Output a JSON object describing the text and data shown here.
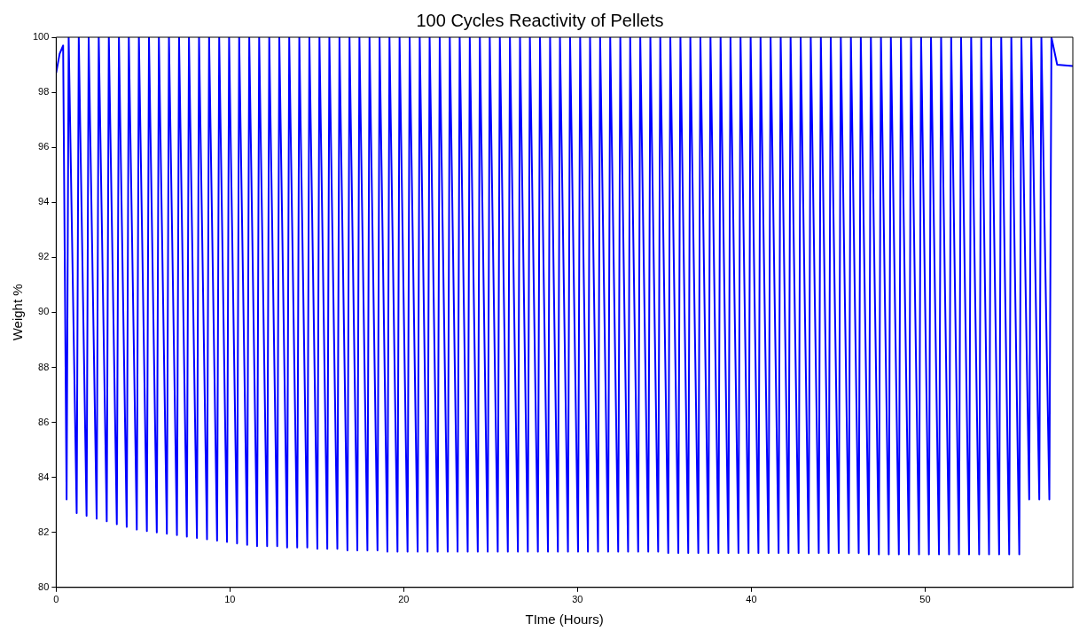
{
  "chart_data": {
    "type": "line",
    "title": "100 Cycles Reactivity of Pellets",
    "xlabel": "TIme (Hours)",
    "ylabel": "Weight %",
    "xlim": [
      0,
      58.5
    ],
    "ylim": [
      80,
      100
    ],
    "xticks": [
      0,
      10,
      20,
      30,
      40,
      50
    ],
    "yticks": [
      80,
      82,
      84,
      86,
      88,
      90,
      92,
      94,
      96,
      98,
      100
    ],
    "grid": false,
    "legend": false,
    "marker": "none",
    "line_style": "solid",
    "series": [
      {
        "color": "#0000ff",
        "x": [
          0,
          0.2,
          0.4,
          0.6,
          0.72,
          1.18,
          1.3,
          1.75,
          1.87,
          2.33,
          2.45,
          2.91,
          3.03,
          3.49,
          3.61,
          4.06,
          4.18,
          4.64,
          4.76,
          5.22,
          5.34,
          5.79,
          5.91,
          6.37,
          6.49,
          6.95,
          7.07,
          7.52,
          7.64,
          8.1,
          8.22,
          8.68,
          8.8,
          9.26,
          9.38,
          9.83,
          9.95,
          10.41,
          10.53,
          10.99,
          11.11,
          11.56,
          11.68,
          12.14,
          12.26,
          12.72,
          12.84,
          13.29,
          13.41,
          13.87,
          13.99,
          14.45,
          14.57,
          15.03,
          15.15,
          15.6,
          15.72,
          16.18,
          16.3,
          16.76,
          16.88,
          17.33,
          17.45,
          17.91,
          18.03,
          18.49,
          18.61,
          19.06,
          19.18,
          19.64,
          19.76,
          20.22,
          20.34,
          20.8,
          20.92,
          21.37,
          21.49,
          21.95,
          22.07,
          22.53,
          22.65,
          23.1,
          23.22,
          23.68,
          23.8,
          24.26,
          24.38,
          24.83,
          24.95,
          25.41,
          25.53,
          25.99,
          26.11,
          26.57,
          26.69,
          27.14,
          27.26,
          27.72,
          27.84,
          28.3,
          28.42,
          28.87,
          28.99,
          29.45,
          29.57,
          30.03,
          30.15,
          30.6,
          30.72,
          31.18,
          31.3,
          31.76,
          31.88,
          32.34,
          32.46,
          32.91,
          33.03,
          33.49,
          33.61,
          34.07,
          34.19,
          34.64,
          34.76,
          35.22,
          35.34,
          35.8,
          35.92,
          36.37,
          36.49,
          36.95,
          37.07,
          37.53,
          37.65,
          38.11,
          38.23,
          38.68,
          38.8,
          39.26,
          39.38,
          39.84,
          39.96,
          40.41,
          40.53,
          40.99,
          41.11,
          41.57,
          41.69,
          42.14,
          42.26,
          42.72,
          42.84,
          43.3,
          43.42,
          43.88,
          44.0,
          44.45,
          44.57,
          45.03,
          45.15,
          45.61,
          45.73,
          46.18,
          46.3,
          46.76,
          46.88,
          47.34,
          47.46,
          47.91,
          48.03,
          48.49,
          48.61,
          49.07,
          49.19,
          49.65,
          49.77,
          50.22,
          50.34,
          50.8,
          50.92,
          51.38,
          51.5,
          51.95,
          52.07,
          52.53,
          52.65,
          53.11,
          53.23,
          53.68,
          53.8,
          54.26,
          54.38,
          54.84,
          54.96,
          55.42,
          55.54,
          55.99,
          56.11,
          56.57,
          56.69,
          57.15,
          57.27,
          57.6,
          58.5
        ],
        "values": [
          98.7,
          99.4,
          99.7,
          83.2,
          100,
          82.7,
          100,
          82.6,
          100,
          82.5,
          100,
          82.4,
          100,
          82.3,
          100,
          82.2,
          100,
          82.1,
          100,
          82.05,
          100,
          82.0,
          100,
          81.95,
          100,
          81.9,
          100,
          81.85,
          100,
          81.8,
          100,
          81.75,
          100,
          81.7,
          100,
          81.65,
          100,
          81.6,
          100,
          81.55,
          100,
          81.5,
          100,
          81.5,
          100,
          81.5,
          100,
          81.45,
          100,
          81.45,
          100,
          81.45,
          100,
          81.4,
          100,
          81.4,
          100,
          81.4,
          100,
          81.35,
          100,
          81.35,
          100,
          81.35,
          100,
          81.35,
          100,
          81.3,
          100,
          81.3,
          100,
          81.3,
          100,
          81.3,
          100,
          81.3,
          100,
          81.3,
          100,
          81.3,
          100,
          81.3,
          100,
          81.3,
          100,
          81.3,
          100,
          81.3,
          100,
          81.3,
          100,
          81.3,
          100,
          81.3,
          100,
          81.3,
          100,
          81.3,
          100,
          81.3,
          100,
          81.3,
          100,
          81.3,
          100,
          81.3,
          100,
          81.3,
          100,
          81.3,
          100,
          81.3,
          100,
          81.3,
          100,
          81.3,
          100,
          81.3,
          100,
          81.3,
          100,
          81.3,
          100,
          81.25,
          100,
          81.25,
          100,
          81.25,
          100,
          81.25,
          100,
          81.25,
          100,
          81.25,
          100,
          81.25,
          100,
          81.25,
          100,
          81.25,
          100,
          81.25,
          100,
          81.25,
          100,
          81.25,
          100,
          81.25,
          100,
          81.25,
          100,
          81.25,
          100,
          81.25,
          100,
          81.25,
          100,
          81.25,
          100,
          81.25,
          100,
          81.25,
          100,
          81.2,
          100,
          81.2,
          100,
          81.2,
          100,
          81.2,
          100,
          81.2,
          100,
          81.2,
          100,
          81.2,
          100,
          81.2,
          100,
          81.2,
          100,
          81.2,
          100,
          81.2,
          100,
          81.2,
          100,
          81.2,
          100,
          81.2,
          100,
          81.2,
          100,
          81.2,
          100,
          83.2,
          100,
          83.2,
          100,
          83.2,
          100,
          99.0,
          98.95
        ]
      }
    ]
  }
}
